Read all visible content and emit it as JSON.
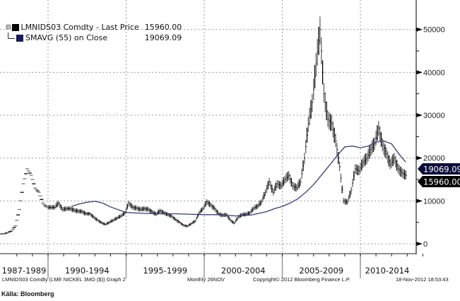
{
  "chart_data": {
    "type": "bar",
    "subtype": "price-bars-with-moving-average",
    "title": "LMNIDS03 Comdty (LME NICKEL 3MO ($)) Graph 2",
    "x_axis": {
      "start_year": 1987,
      "end_year": 2012.9,
      "period_labels": [
        "1987-1989",
        "1990-1994",
        "1995-1999",
        "2000-2004",
        "2005-2009",
        "2010-2014"
      ],
      "period_starts": [
        1987,
        1990,
        1995,
        2000,
        2005,
        2010
      ]
    },
    "y_axis": {
      "ylim": [
        -3000,
        55000
      ],
      "ticks": [
        0,
        10000,
        20000,
        30000,
        40000,
        50000
      ],
      "tick_labels": [
        "0",
        "10000",
        "20000",
        "30000",
        "40000",
        "50000"
      ],
      "position": "right",
      "grid": true
    },
    "series": [
      {
        "name": "LMNIDS03 Comdty - Last Price",
        "last_value": "15960.00",
        "color": "#000000",
        "frequency": "quarterly-close",
        "start": 1987.0,
        "step": 0.25,
        "values": [
          2300,
          2600,
          3000,
          4200,
          8000,
          14000,
          17500,
          16000,
          13000,
          12000,
          9500,
          8500,
          8500,
          8500,
          9500,
          8000,
          8200,
          8200,
          7800,
          7600,
          7500,
          7000,
          7000,
          6200,
          5500,
          4900,
          4500,
          5000,
          5500,
          6000,
          6500,
          7200,
          9500,
          8500,
          8300,
          8000,
          8200,
          8000,
          7400,
          6900,
          7700,
          7200,
          6800,
          6400,
          5600,
          5000,
          4300,
          4100,
          4700,
          5300,
          7200,
          8200,
          9800,
          9000,
          8200,
          7000,
          6600,
          6800,
          5500,
          4800,
          6200,
          6800,
          6900,
          7200,
          8300,
          8800,
          9800,
          12000,
          14500,
          12000,
          14000,
          13500,
          15000,
          16000,
          13500,
          13000,
          14500,
          20000,
          28000,
          33000,
          42000,
          50000,
          35000,
          29000,
          28000,
          24000,
          18000,
          10000,
          9700,
          12500,
          17500,
          17000,
          19000,
          20000,
          22000,
          23500,
          27000,
          23000,
          21000,
          18500,
          20000,
          17500,
          16500,
          15960
        ]
      },
      {
        "name": "SMAVG (55) on Close",
        "last_value": "19069.09",
        "color": "#2b2b6e",
        "x": [
          1991.5,
          1992,
          1992.5,
          1993,
          1993.5,
          1994,
          1995,
          1996,
          1997,
          1998,
          1999,
          2000,
          2001,
          2002,
          2003,
          2004,
          2004.5,
          2005,
          2005.5,
          2006,
          2006.5,
          2007,
          2007.5,
          2008,
          2008.5,
          2009,
          2009.5,
          2010,
          2010.5,
          2011,
          2011.5,
          2012,
          2012.5,
          2012.9
        ],
        "values": [
          8700,
          9300,
          9700,
          9900,
          9500,
          8600,
          7300,
          7100,
          7000,
          7000,
          6900,
          6800,
          6800,
          6500,
          6700,
          7500,
          8200,
          8700,
          9500,
          10500,
          12000,
          13800,
          16000,
          18200,
          20500,
          22600,
          22800,
          22400,
          22800,
          23700,
          24000,
          23300,
          20800,
          19069.09
        ]
      }
    ],
    "legend": {
      "placement": "top-left",
      "entries": [
        {
          "label": "LMNIDS03 Comdty - Last Price",
          "value": "15960.00",
          "color": "#000000"
        },
        {
          "label": "SMAVG (55) on Close",
          "value": "19069.09",
          "color": "#1a1a55"
        }
      ]
    },
    "value_tags": [
      {
        "label": "19069.09",
        "color": "#0c0c3a"
      },
      {
        "label": "15960.00",
        "color": "#000000"
      }
    ]
  },
  "footer": {
    "ticker": "LMNIDS03 Comdty (LME NICKEL   3MO ($)) Graph 2",
    "frequency": "Monthly 26NOV",
    "copyright": "Copyright© 2012 Bloomberg Finance L.P.",
    "timestamp": "18-Nov-2012 18:53:43"
  },
  "source": "Källa: Bloomberg"
}
